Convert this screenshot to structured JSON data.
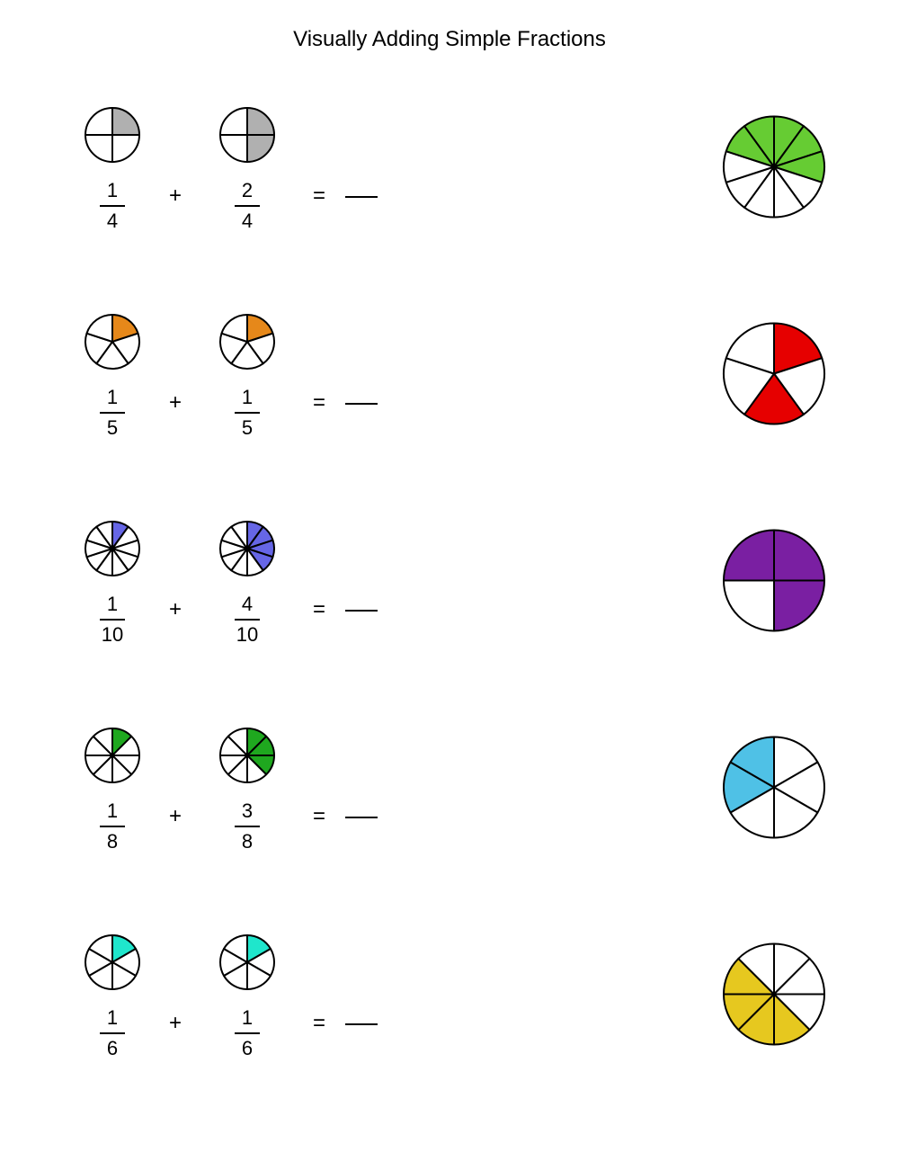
{
  "title": "Visually Adding Simple Fractions",
  "colors": {
    "stroke": "#000000",
    "background": "#ffffff"
  },
  "small_radius": 30,
  "large_radius": 56,
  "stroke_width": 2,
  "rows": [
    {
      "left": {
        "slices": 4,
        "filled_start": 0,
        "filled_count": 1,
        "color": "#b0b0b0",
        "numerator": "1",
        "denominator": "4"
      },
      "right": {
        "slices": 4,
        "filled_start": 0,
        "filled_count": 2,
        "color": "#b0b0b0",
        "numerator": "2",
        "denominator": "4"
      },
      "answer_circle": {
        "slices": 10,
        "filled_start": 8,
        "filled_count": 5,
        "color": "#66cc33"
      }
    },
    {
      "left": {
        "slices": 5,
        "filled_start": 0,
        "filled_count": 1,
        "color": "#e6881a",
        "numerator": "1",
        "denominator": "5"
      },
      "right": {
        "slices": 5,
        "filled_start": 0,
        "filled_count": 1,
        "color": "#e6881a",
        "numerator": "1",
        "denominator": "5"
      },
      "answer_circle": {
        "slices": 5,
        "filled_indices": [
          0,
          2
        ],
        "color": "#e60000"
      }
    },
    {
      "left": {
        "slices": 10,
        "filled_start": 0,
        "filled_count": 1,
        "color": "#6666e6",
        "numerator": "1",
        "denominator": "10"
      },
      "right": {
        "slices": 10,
        "filled_start": 10,
        "filled_count": 4,
        "color": "#6666e6",
        "numerator": "4",
        "denominator": "10"
      },
      "answer_circle": {
        "slices": 4,
        "filled_start": 3,
        "filled_count": 3,
        "color": "#7a1fa2"
      }
    },
    {
      "left": {
        "slices": 8,
        "filled_start": 0,
        "filled_count": 1,
        "color": "#1fa81f",
        "numerator": "1",
        "denominator": "8"
      },
      "right": {
        "slices": 8,
        "filled_start": 0,
        "filled_count": 3,
        "color": "#1fa81f",
        "numerator": "3",
        "denominator": "8"
      },
      "answer_circle": {
        "slices": 6,
        "filled_start": 4,
        "filled_count": 2,
        "color": "#4fc1e6"
      }
    },
    {
      "left": {
        "slices": 6,
        "filled_start": 0,
        "filled_count": 1,
        "color": "#1fe6cc",
        "numerator": "1",
        "denominator": "6"
      },
      "right": {
        "slices": 6,
        "filled_start": 0,
        "filled_count": 1,
        "color": "#1fe6cc",
        "numerator": "1",
        "denominator": "6"
      },
      "answer_circle": {
        "slices": 8,
        "filled_start": 3,
        "filled_count": 4,
        "color": "#e6c81f"
      }
    }
  ],
  "symbols": {
    "plus": "+",
    "equals": "="
  }
}
